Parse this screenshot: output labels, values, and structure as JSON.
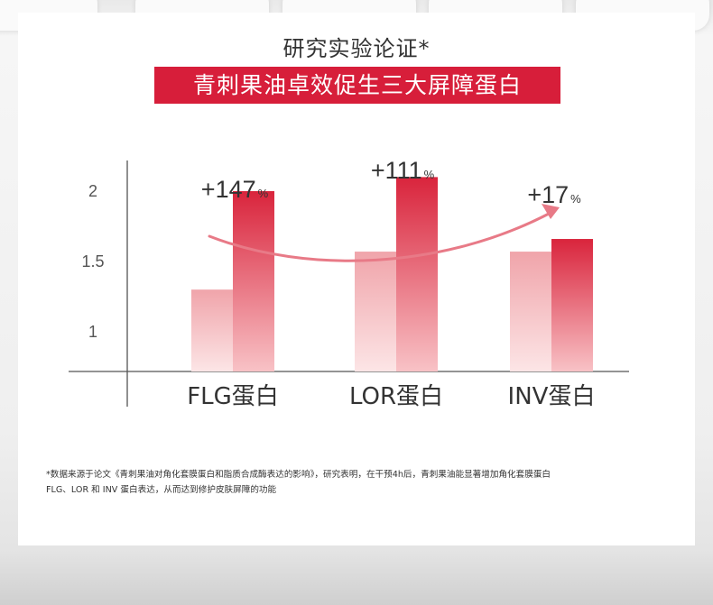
{
  "title": "研究实验论证*",
  "banner": "青刺果油卓效促生三大屏障蛋白",
  "footnote": {
    "line1": "*数据来源于论文《青刺果油对角化套膜蛋白和脂质合成酶表达的影响》，研究表明，在干预4h后，青刺果油能显著增加角化套膜蛋白",
    "line2": "FLG、LOR 和 INV 蛋白表达，从而达到修护皮肤屏障的功能"
  },
  "colors": {
    "banner": "#d71e3a",
    "bar_dark_top": "#d9243c",
    "bar_dark_bottom": "#f8c2c6",
    "bar_light_top": "#f0a4aa",
    "bar_light_bottom": "#fce5e6",
    "arrow": "#e87a87"
  },
  "chart_data": {
    "type": "bar",
    "categories": [
      "FLG蛋白",
      "LOR蛋白",
      "INV蛋白"
    ],
    "series": [
      {
        "values": [
          1.3,
          1.57,
          1.57
        ]
      },
      {
        "values": [
          2.0,
          2.1,
          1.66
        ]
      }
    ],
    "annotations": [
      {
        "number": "+147",
        "unit": "%"
      },
      {
        "number": "+111",
        "unit": "%"
      },
      {
        "number": "+17",
        "unit": "%"
      }
    ],
    "yticks": [
      "1",
      "1.5",
      "2"
    ],
    "ylim": [
      0.7,
      2.5
    ],
    "grid": false,
    "trend_arrow": true
  }
}
